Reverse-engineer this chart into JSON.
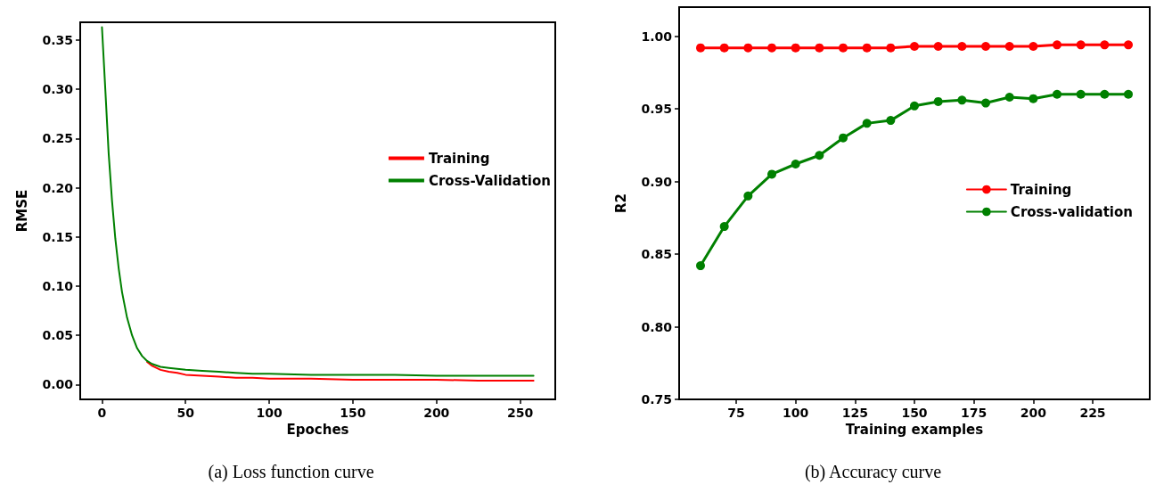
{
  "chart_data": [
    {
      "type": "line",
      "title": "(a) Loss function curve",
      "xlabel": "Epoches",
      "ylabel": "RMSE",
      "legend": "right",
      "marker": "none",
      "x": [
        0,
        2,
        4,
        6,
        8,
        10,
        12,
        15,
        18,
        21,
        24,
        27,
        30,
        35,
        40,
        45,
        50,
        60,
        70,
        80,
        90,
        100,
        125,
        150,
        175,
        200,
        225,
        258
      ],
      "series": [
        {
          "name": "Training",
          "color": "#ff0000",
          "values": [
            null,
            null,
            null,
            null,
            null,
            null,
            null,
            null,
            null,
            null,
            null,
            0.023,
            0.019,
            0.015,
            0.013,
            0.012,
            0.01,
            0.009,
            0.008,
            0.007,
            0.007,
            0.006,
            0.006,
            0.005,
            0.005,
            0.005,
            0.004,
            0.004
          ]
        },
        {
          "name": "Cross-Validation",
          "color": "#008000",
          "values": [
            0.363,
            0.3,
            0.235,
            0.187,
            0.148,
            0.118,
            0.094,
            0.068,
            0.05,
            0.037,
            0.029,
            0.024,
            0.021,
            0.018,
            0.017,
            0.016,
            0.015,
            0.014,
            0.013,
            0.012,
            0.011,
            0.011,
            0.01,
            0.01,
            0.01,
            0.009,
            0.009,
            0.009
          ]
        }
      ],
      "xlim": [
        -13,
        271
      ],
      "xticks": [
        0,
        50,
        100,
        150,
        200,
        250
      ],
      "ylim": [
        -0.015,
        0.368
      ],
      "yticks": [
        {
          "value": 0,
          "label": "0.00"
        },
        {
          "value": 0.05,
          "label": "0.05"
        },
        {
          "value": 0.1,
          "label": "0.10"
        },
        {
          "value": 0.15,
          "label": "0.15"
        },
        {
          "value": 0.2,
          "label": "0.20"
        },
        {
          "value": 0.25,
          "label": "0.25"
        },
        {
          "value": 0.3,
          "label": "0.30"
        },
        {
          "value": 0.35,
          "label": "0.35"
        }
      ]
    },
    {
      "type": "line",
      "title": "(b) Accuracy curve",
      "xlabel": "Training examples",
      "ylabel": "R2",
      "legend": "right",
      "marker": "circle",
      "x": [
        60,
        70,
        80,
        90,
        100,
        110,
        120,
        130,
        140,
        150,
        160,
        170,
        180,
        190,
        200,
        210,
        220,
        230,
        240
      ],
      "series": [
        {
          "name": "Training",
          "color": "#ff0000",
          "values": [
            0.992,
            0.992,
            0.992,
            0.992,
            0.992,
            0.992,
            0.992,
            0.992,
            0.992,
            0.993,
            0.993,
            0.993,
            0.993,
            0.993,
            0.993,
            0.994,
            0.994,
            0.994,
            0.994
          ]
        },
        {
          "name": "Cross-validation",
          "color": "#008000",
          "values": [
            0.842,
            0.869,
            0.89,
            0.905,
            0.912,
            0.918,
            0.93,
            0.94,
            0.942,
            0.952,
            0.955,
            0.956,
            0.954,
            0.958,
            0.957,
            0.96,
            0.96,
            0.96,
            0.96
          ]
        }
      ],
      "xlim": [
        51,
        249
      ],
      "xticks": [
        75,
        100,
        125,
        150,
        175,
        200,
        225
      ],
      "ylim": [
        0.75,
        1.02
      ],
      "yticks": [
        {
          "value": 0.75,
          "label": "0.75"
        },
        {
          "value": 0.8,
          "label": "0.80"
        },
        {
          "value": 0.85,
          "label": "0.85"
        },
        {
          "value": 0.9,
          "label": "0.90"
        },
        {
          "value": 0.95,
          "label": "0.95"
        },
        {
          "value": 1,
          "label": "1.00"
        }
      ]
    }
  ]
}
